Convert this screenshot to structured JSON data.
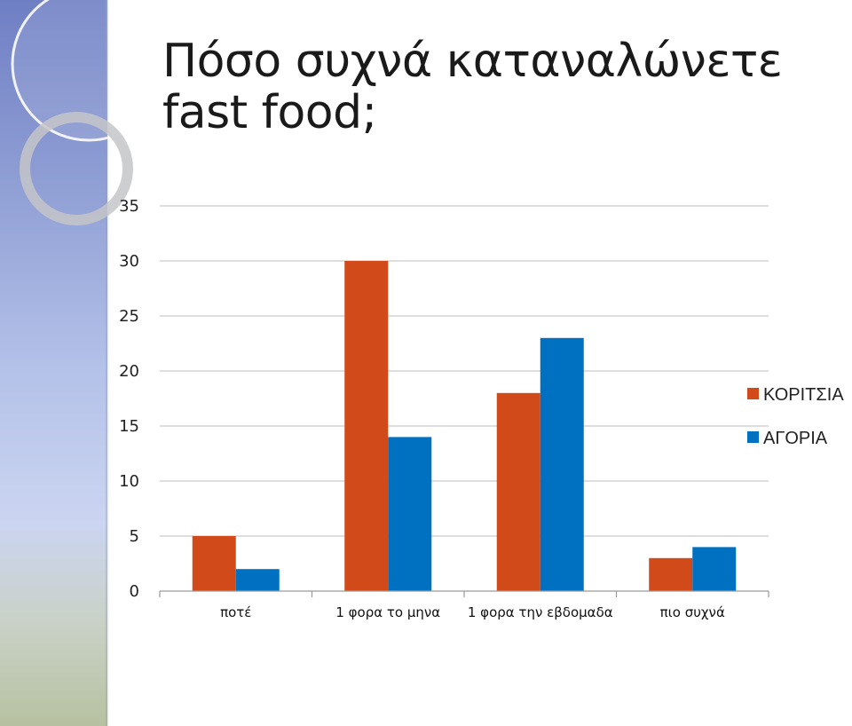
{
  "slide": {
    "title": "Πόσο συχνά καταναλώνετε fast food;"
  },
  "chart_data": {
    "type": "bar",
    "title": "",
    "xlabel": "",
    "ylabel": "",
    "categories": [
      "ποτέ",
      "1 φορα το μηνα",
      "1 φορα την εβδομαδα",
      "πιο συχνά"
    ],
    "series": [
      {
        "name": "ΚΟΡΙΤΣΙΑ",
        "color": "#d04a1a",
        "values": [
          5,
          30,
          18,
          3
        ]
      },
      {
        "name": "ΑΓΟΡΙΑ",
        "color": "#0070c0",
        "values": [
          2,
          14,
          23,
          4
        ]
      }
    ],
    "ylim": [
      0,
      35
    ],
    "yticks": [
      "0",
      "5",
      "10",
      "15",
      "20",
      "25",
      "30",
      "35"
    ],
    "grid": true,
    "legend": "right"
  }
}
